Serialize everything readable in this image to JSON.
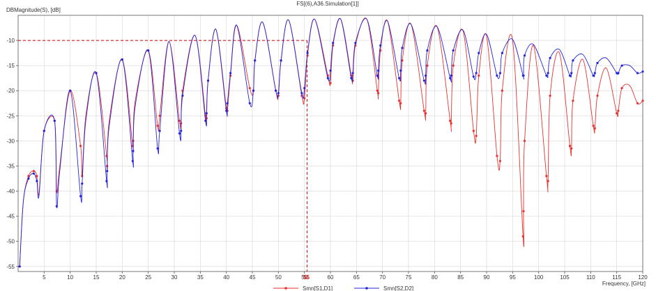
{
  "chart_data": {
    "type": "line",
    "title": "FS[(6),A36.Simulation[1]]",
    "ylabel": "DBMagnitude(S), [dB]",
    "xlabel": "Frequency, [GHz]",
    "xlim": [
      0,
      120
    ],
    "ylim": [
      -56,
      -5
    ],
    "xticks": [
      5,
      10,
      15,
      20,
      25,
      30,
      35,
      40,
      45,
      50,
      55,
      60,
      65,
      70,
      75,
      80,
      85,
      90,
      95,
      100,
      105,
      110,
      115,
      120
    ],
    "yticks": [
      -10,
      -15,
      -20,
      -25,
      -30,
      -35,
      -40,
      -45,
      -50,
      -55
    ],
    "grid": true,
    "legend_position": "bottom-center",
    "marker": {
      "x": 55.5,
      "y": -10,
      "x_label": "55",
      "color": "#cc0000"
    },
    "series": [
      {
        "name": "Smn[S1,D1]",
        "color": "#e8312f",
        "x": [
          0.3,
          1,
          2,
          3,
          3.6,
          4,
          5,
          7,
          7.4,
          8,
          10,
          12,
          12.3,
          13,
          15,
          17,
          17.1,
          17.5,
          20,
          22,
          22.1,
          22.5,
          25,
          26.8,
          27.2,
          29,
          31,
          31.3,
          31.6,
          34,
          36,
          36.2,
          36.5,
          38,
          40,
          40.2,
          40.8,
          42,
          44.5,
          45.2,
          45.5,
          47,
          49.5,
          50,
          50.5,
          52,
          54.5,
          55,
          55.6,
          57,
          59.5,
          60,
          60.5,
          62,
          64,
          64.3,
          64.8,
          67,
          69,
          69.2,
          69.6,
          71,
          73.2,
          73.5,
          73.8,
          75.5,
          78,
          78.3,
          78.6,
          80.5,
          83,
          83.2,
          83.6,
          85.5,
          87.5,
          88,
          88.5,
          90,
          92,
          92.6,
          93,
          95,
          97,
          97.1,
          97.3,
          99,
          101.5,
          101.8,
          102.2,
          104,
          106,
          106.3,
          106.6,
          108.5,
          110.5,
          110.8,
          111.3,
          113,
          115,
          115.3,
          116,
          117.5,
          119,
          120
        ],
        "y": [
          -55,
          -42,
          -37,
          -36,
          -37,
          -40.5,
          -28,
          -26,
          -40,
          -35,
          -20,
          -31,
          -37,
          -25,
          -16.5,
          -33,
          -35,
          -26,
          -13.8,
          -31,
          -30,
          -22,
          -12,
          -27,
          -25,
          -10.2,
          -26,
          -26.5,
          -20,
          -9,
          -25,
          -25.5,
          -18,
          -7.8,
          -23.5,
          -24,
          -17,
          -7,
          -19.5,
          -20,
          -14,
          -6.4,
          -20,
          -21,
          -14,
          -6,
          -21,
          -21.5,
          -13,
          -5.8,
          -17,
          -18.5,
          -11,
          -5.8,
          -17,
          -18,
          -11,
          -5.8,
          -20,
          -20.5,
          -12,
          -6.2,
          -22,
          -22.5,
          -14,
          -6.8,
          -24,
          -24.5,
          -15,
          -7.3,
          -26,
          -26.5,
          -15,
          -8.2,
          -28,
          -29,
          -17,
          -9.2,
          -33,
          -34,
          -20,
          -10,
          -49,
          -44,
          -30,
          -11,
          -37,
          -38,
          -21,
          -12.5,
          -31,
          -31.5,
          -22,
          -13.8,
          -27,
          -27.5,
          -21,
          -15.5,
          -24.5,
          -24,
          -19.5,
          -19,
          -22.5,
          -22
        ]
      },
      {
        "name": "Smn[S2,D2]",
        "color": "#2424d8",
        "x": [
          0.3,
          1,
          2,
          3,
          3.6,
          4,
          5,
          7,
          7.4,
          8,
          10,
          12,
          12.3,
          13,
          15,
          17,
          17.1,
          17.5,
          20,
          22,
          22.1,
          22.5,
          25,
          26.8,
          27.2,
          29,
          31,
          31.3,
          31.6,
          34,
          36,
          36.2,
          36.5,
          38,
          40,
          40.2,
          40.8,
          42,
          44.5,
          45.2,
          45.5,
          47,
          49.5,
          50,
          50.5,
          52,
          54.5,
          55,
          55.6,
          57,
          59.5,
          60,
          60.5,
          62,
          64,
          64.3,
          64.8,
          67,
          69,
          69.2,
          69.6,
          71,
          73.2,
          73.5,
          73.8,
          75.5,
          78,
          78.3,
          78.6,
          80.5,
          83,
          83.2,
          83.6,
          85.5,
          87.5,
          88,
          88.5,
          90,
          92,
          92.6,
          93,
          95,
          97,
          97.1,
          97.3,
          99,
          101.5,
          101.8,
          102.2,
          104,
          106,
          106.3,
          106.6,
          108.5,
          110.5,
          110.8,
          111.3,
          113,
          115,
          115.3,
          116,
          117.5,
          119,
          120
        ],
        "y": [
          -55,
          -42,
          -37.5,
          -36.5,
          -38,
          -41,
          -28,
          -26,
          -43,
          -36,
          -20,
          -41,
          -38.5,
          -26,
          -16.5,
          -38,
          -36,
          -27,
          -13.8,
          -34,
          -32,
          -23,
          -12,
          -31.5,
          -28,
          -10.2,
          -28.5,
          -28,
          -21,
          -9,
          -26,
          -24.5,
          -18,
          -7.8,
          -24,
          -22.5,
          -16.5,
          -7,
          -22.5,
          -20,
          -14,
          -6.4,
          -20,
          -20.5,
          -14,
          -6,
          -20.5,
          -19.5,
          -12.5,
          -5.8,
          -17.5,
          -16,
          -10.5,
          -5.8,
          -17.5,
          -16.5,
          -10.5,
          -5.8,
          -17,
          -16,
          -11,
          -6.2,
          -17.5,
          -16,
          -11.5,
          -6.8,
          -18,
          -17,
          -12,
          -7.3,
          -17.5,
          -17,
          -12,
          -8,
          -17.2,
          -16.5,
          -12.5,
          -8.8,
          -17,
          -16.5,
          -12.5,
          -9.8,
          -17,
          -17,
          -13,
          -10.8,
          -17,
          -16.5,
          -13.5,
          -11.8,
          -17,
          -16.5,
          -14,
          -12.8,
          -17,
          -16.5,
          -14.5,
          -13.5,
          -16.5,
          -16.5,
          -15,
          -15,
          -16.5,
          -16.2
        ]
      }
    ]
  }
}
